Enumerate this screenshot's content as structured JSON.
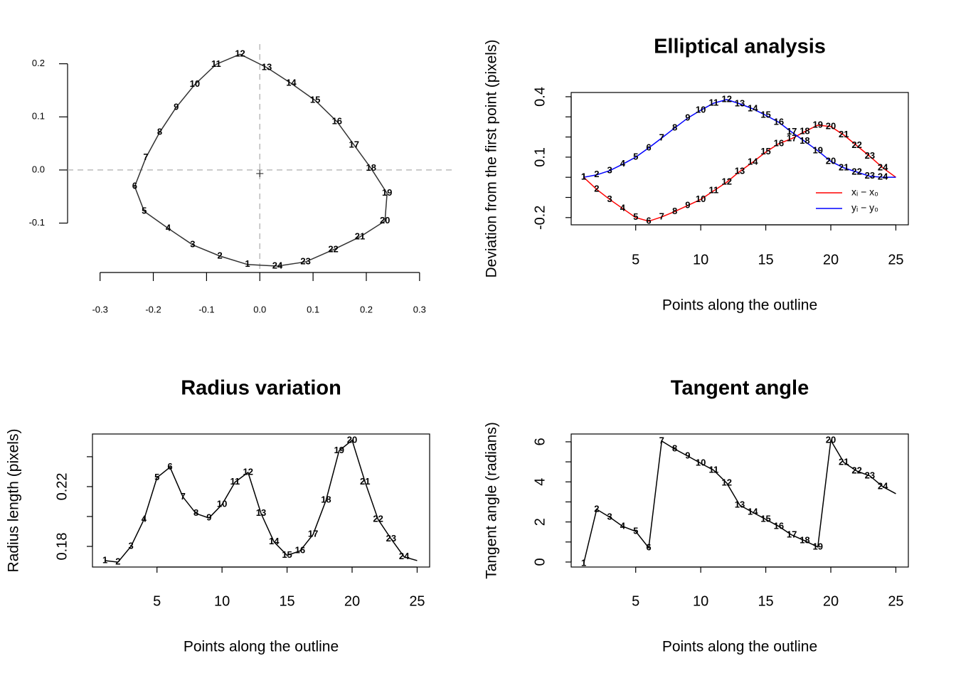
{
  "chart_data": [
    {
      "type": "line",
      "closed": true,
      "crosshair": true,
      "box": false,
      "x": [
        -0.023,
        -0.075,
        -0.126,
        -0.172,
        -0.217,
        -0.235,
        -0.214,
        -0.188,
        -0.157,
        -0.122,
        -0.082,
        -0.037,
        0.013,
        0.059,
        0.104,
        0.145,
        0.177,
        0.209,
        0.239,
        0.235,
        0.188,
        0.138,
        0.086,
        0.033
      ],
      "series": [
        {
          "color": "#333333",
          "values": [
            -0.178,
            -0.162,
            -0.141,
            -0.11,
            -0.078,
            -0.031,
            0.023,
            0.071,
            0.118,
            0.161,
            0.199,
            0.218,
            0.193,
            0.163,
            0.131,
            0.091,
            0.047,
            0.003,
            -0.044,
            -0.096,
            -0.126,
            -0.15,
            -0.173,
            -0.181
          ],
          "labels": [
            "1",
            "2",
            "3",
            "4",
            "5",
            "6",
            "7",
            "8",
            "9",
            "10",
            "11",
            "12",
            "13",
            "14",
            "15",
            "16",
            "17",
            "18",
            "19",
            "20",
            "21",
            "22",
            "23",
            "24"
          ]
        }
      ],
      "xlim": [
        -0.361,
        0.367
      ],
      "ylim": [
        -0.193,
        0.237
      ],
      "xticks": [
        -0.3,
        -0.2,
        -0.1,
        {
          "value": 0,
          "label": "0.0"
        },
        0.1,
        0.2,
        0.3
      ],
      "yticks": [
        -0.1,
        {
          "value": 0,
          "label": "0.0"
        },
        0.1,
        0.2
      ]
    },
    {
      "type": "line",
      "box": true,
      "title": "Elliptical analysis",
      "xlabel": "Points along the outline",
      "ylabel": "Deviation from the first point (pixels)",
      "x": [
        1,
        2,
        3,
        4,
        5,
        6,
        7,
        8,
        9,
        10,
        11,
        12,
        13,
        14,
        15,
        16,
        17,
        18,
        19,
        20,
        21,
        22,
        23,
        24,
        25
      ],
      "series": [
        {
          "name": "xᵢ − x₀",
          "color": "#ff0000",
          "values": [
            0,
            -0.06,
            -0.11,
            -0.155,
            -0.2,
            -0.218,
            -0.197,
            -0.17,
            -0.14,
            -0.11,
            -0.067,
            -0.024,
            0.029,
            0.075,
            0.125,
            0.167,
            0.192,
            0.227,
            0.259,
            0.252,
            0.21,
            0.157,
            0.104,
            0.047,
            0
          ],
          "labels": [
            "1",
            "2",
            "3",
            "4",
            "5",
            "6",
            "7",
            "8",
            "9",
            "10",
            "11",
            "12",
            "13",
            "14",
            "15",
            "16",
            "17",
            "18",
            "19",
            "20",
            "21",
            "22",
            "23",
            "24",
            null
          ]
        },
        {
          "name": "yᵢ − y₀",
          "color": "#0000ff",
          "values": [
            0,
            0.012,
            0.033,
            0.065,
            0.1,
            0.146,
            0.195,
            0.245,
            0.294,
            0.333,
            0.368,
            0.386,
            0.365,
            0.34,
            0.308,
            0.273,
            0.224,
            0.178,
            0.132,
            0.079,
            0.047,
            0.026,
            0.005,
            0,
            0
          ],
          "labels": [
            "1",
            "2",
            "3",
            "4",
            "5",
            "6",
            "7",
            "8",
            "9",
            "10",
            "11",
            "12",
            "13",
            "14",
            "15",
            "16",
            "17",
            "18",
            "19",
            "20",
            "21",
            "22",
            "23",
            "24",
            null
          ]
        }
      ],
      "legend": "bottomright",
      "xlim": [
        0.04,
        25.96
      ],
      "ylim": [
        -0.236,
        0.421
      ],
      "xticks": [
        5,
        10,
        15,
        20,
        25
      ],
      "yticks": [
        -0.2,
        0.1,
        0.4
      ],
      "yticks_unlabeled": [
        -0.1,
        0,
        0.2,
        0.3
      ]
    },
    {
      "type": "line",
      "box": true,
      "title": "Radius variation",
      "xlabel": "Points along the outline",
      "ylabel": "Radius length (pixels)",
      "x": [
        1,
        2,
        3,
        4,
        5,
        6,
        7,
        8,
        9,
        10,
        11,
        12,
        13,
        14,
        15,
        16,
        17,
        18,
        19,
        20,
        21,
        22,
        23,
        24,
        25
      ],
      "series": [
        {
          "color": "#000000",
          "values": [
            0.1705,
            0.1695,
            0.18,
            0.198,
            0.226,
            0.233,
            0.213,
            0.202,
            0.199,
            0.208,
            0.223,
            0.2295,
            0.202,
            0.183,
            0.174,
            0.177,
            0.188,
            0.211,
            0.244,
            0.251,
            0.223,
            0.198,
            0.185,
            0.173,
            0.1705
          ],
          "labels": [
            "1",
            "2",
            "3",
            "4",
            "5",
            "6",
            "7",
            "8",
            "9",
            "10",
            "11",
            "12",
            "13",
            "14",
            "15",
            "16",
            "17",
            "18",
            "19",
            "20",
            "21",
            "22",
            "23",
            "24",
            null
          ]
        }
      ],
      "xlim": [
        0.04,
        25.96
      ],
      "ylim": [
        0.1662,
        0.2552
      ],
      "xticks": [
        5,
        10,
        15,
        20,
        25
      ],
      "yticks": [
        0.18,
        0.22
      ],
      "yticks_unlabeled": [
        0.2,
        0.24
      ]
    },
    {
      "type": "line",
      "box": true,
      "title": "Tangent angle",
      "xlabel": "Points along the outline",
      "ylabel": "Tangent angle (radians)",
      "x": [
        1,
        2,
        3,
        4,
        5,
        6,
        7,
        8,
        9,
        10,
        11,
        12,
        13,
        14,
        15,
        16,
        17,
        18,
        19,
        20,
        21,
        22,
        23,
        24,
        25
      ],
      "series": [
        {
          "color": "#000000",
          "values": [
            -0.07,
            2.63,
            2.24,
            1.78,
            1.53,
            0.71,
            6.04,
            5.64,
            5.29,
            4.93,
            4.58,
            3.94,
            2.84,
            2.48,
            2.13,
            1.78,
            1.35,
            1.06,
            0.75,
            6.07,
            4.97,
            4.54,
            4.3,
            3.76,
            3.41
          ],
          "labels": [
            "1",
            "2",
            "3",
            "4",
            "5",
            "6",
            "7",
            "8",
            "9",
            "10",
            "11",
            "12",
            "13",
            "14",
            "15",
            "16",
            "17",
            "18",
            "19",
            "20",
            "21",
            "22",
            "23",
            "24",
            null
          ]
        }
      ],
      "xlim": [
        0.04,
        25.96
      ],
      "ylim": [
        -0.25,
        6.39
      ],
      "xticks": [
        5,
        10,
        15,
        20,
        25
      ],
      "yticks": [
        0,
        2,
        4,
        6
      ],
      "yticks_unlabeled": [
        1,
        3,
        5
      ]
    }
  ]
}
